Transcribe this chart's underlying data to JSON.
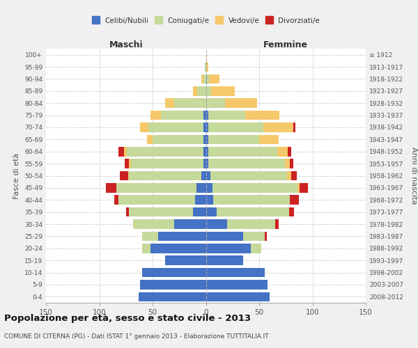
{
  "age_groups": [
    "0-4",
    "5-9",
    "10-14",
    "15-19",
    "20-24",
    "25-29",
    "30-34",
    "35-39",
    "40-44",
    "45-49",
    "50-54",
    "55-59",
    "60-64",
    "65-69",
    "70-74",
    "75-79",
    "80-84",
    "85-89",
    "90-94",
    "95-99",
    "100+"
  ],
  "birth_years": [
    "2008-2012",
    "2003-2007",
    "1998-2002",
    "1993-1997",
    "1988-1992",
    "1983-1987",
    "1978-1982",
    "1973-1977",
    "1968-1972",
    "1963-1967",
    "1958-1962",
    "1953-1957",
    "1948-1952",
    "1943-1947",
    "1938-1942",
    "1933-1937",
    "1928-1932",
    "1923-1927",
    "1918-1922",
    "1913-1917",
    "≤ 1912"
  ],
  "male_single": [
    63,
    62,
    60,
    38,
    52,
    45,
    30,
    12,
    10,
    9,
    4,
    2,
    2,
    2,
    2,
    2,
    0,
    0,
    0,
    0,
    0
  ],
  "male_married": [
    0,
    0,
    0,
    0,
    8,
    15,
    38,
    60,
    72,
    75,
    68,
    68,
    72,
    48,
    52,
    40,
    30,
    8,
    2,
    1,
    0
  ],
  "male_widowed": [
    0,
    0,
    0,
    0,
    0,
    0,
    0,
    0,
    0,
    0,
    1,
    2,
    3,
    5,
    8,
    10,
    8,
    4,
    2,
    0,
    0
  ],
  "male_divorced": [
    0,
    0,
    0,
    0,
    0,
    0,
    0,
    3,
    4,
    10,
    8,
    4,
    5,
    0,
    0,
    0,
    0,
    0,
    0,
    0,
    0
  ],
  "female_single": [
    60,
    58,
    55,
    35,
    42,
    35,
    20,
    10,
    7,
    6,
    4,
    2,
    2,
    2,
    2,
    2,
    0,
    0,
    1,
    0,
    0
  ],
  "female_married": [
    0,
    0,
    0,
    0,
    10,
    20,
    45,
    68,
    72,
    80,
    72,
    72,
    65,
    48,
    52,
    35,
    18,
    5,
    2,
    0,
    0
  ],
  "female_widowed": [
    0,
    0,
    0,
    0,
    0,
    0,
    0,
    0,
    0,
    2,
    4,
    5,
    10,
    18,
    28,
    32,
    30,
    22,
    10,
    2,
    1
  ],
  "female_divorced": [
    0,
    0,
    0,
    0,
    0,
    2,
    3,
    5,
    8,
    8,
    5,
    3,
    3,
    0,
    2,
    0,
    0,
    0,
    0,
    0,
    0
  ],
  "colors": {
    "single": "#4472c4",
    "married": "#c5d99a",
    "widowed": "#f5c96a",
    "divorced": "#cc2222"
  },
  "title": "Popolazione per età, sesso e stato civile - 2013",
  "subtitle": "COMUNE DI CITERNA (PG) - Dati ISTAT 1° gennaio 2013 - Elaborazione TUTTITALIA.IT",
  "xlabel_left": "Maschi",
  "xlabel_right": "Femmine",
  "ylabel_left": "Fasce di età",
  "ylabel_right": "Anni di nascita",
  "xlim": 150,
  "bg_color": "#f0f0f0",
  "plot_bg": "#ffffff",
  "legend_labels": [
    "Celibi/Nubili",
    "Coniugati/e",
    "Vedovi/e",
    "Divorziati/e"
  ],
  "legend_marker_colors": [
    "#4472c4",
    "#c5d99a",
    "#f5c96a",
    "#cc2222"
  ]
}
